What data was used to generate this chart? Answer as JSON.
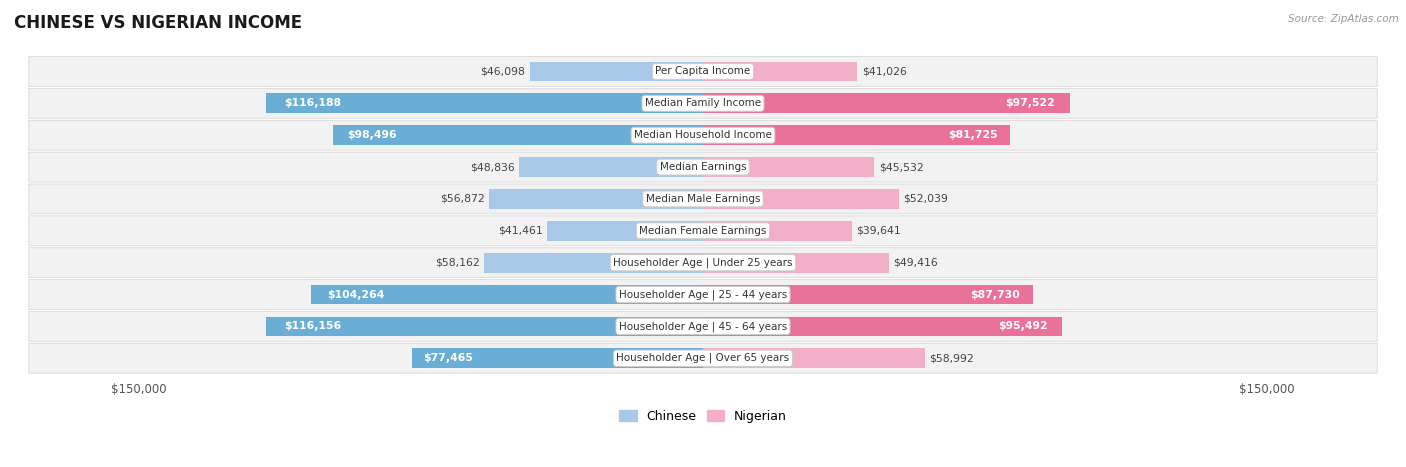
{
  "title": "CHINESE VS NIGERIAN INCOME",
  "source": "Source: ZipAtlas.com",
  "categories": [
    "Per Capita Income",
    "Median Family Income",
    "Median Household Income",
    "Median Earnings",
    "Median Male Earnings",
    "Median Female Earnings",
    "Householder Age | Under 25 years",
    "Householder Age | 25 - 44 years",
    "Householder Age | 45 - 64 years",
    "Householder Age | Over 65 years"
  ],
  "chinese_values": [
    46098,
    116188,
    98496,
    48836,
    56872,
    41461,
    58162,
    104264,
    116156,
    77465
  ],
  "nigerian_values": [
    41026,
    97522,
    81725,
    45532,
    52039,
    39641,
    49416,
    87730,
    95492,
    58992
  ],
  "chinese_labels": [
    "$46,098",
    "$116,188",
    "$98,496",
    "$48,836",
    "$56,872",
    "$41,461",
    "$58,162",
    "$104,264",
    "$116,156",
    "$77,465"
  ],
  "nigerian_labels": [
    "$41,026",
    "$97,522",
    "$81,725",
    "$45,532",
    "$52,039",
    "$39,641",
    "$49,416",
    "$87,730",
    "$95,492",
    "$58,992"
  ],
  "chinese_color_light": "#a8c8e8",
  "chinese_color_dark": "#6aaed6",
  "nigerian_color_light": "#f4afc8",
  "nigerian_color_dark": "#e8729a",
  "row_bg_color": "#f2f2f2",
  "row_border_color": "#d8d8d8",
  "axis_max": 150000,
  "inside_label_threshold": 65000,
  "legend_chinese": "Chinese",
  "legend_nigerian": "Nigerian",
  "title_fontsize": 12,
  "label_fontsize": 7.8,
  "category_fontsize": 7.5,
  "axis_label_fontsize": 8.5
}
